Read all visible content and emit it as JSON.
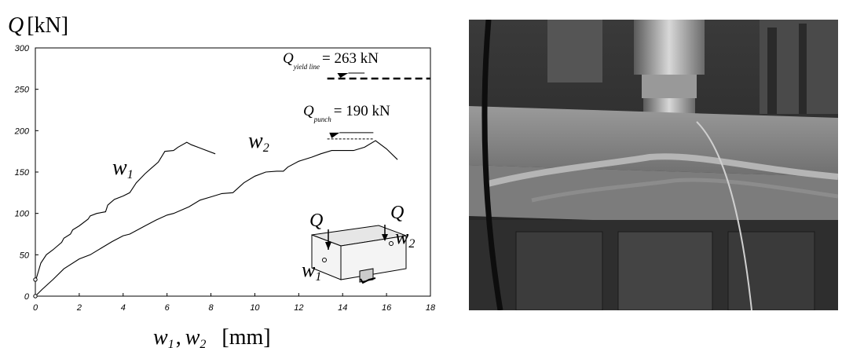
{
  "chart_data": {
    "type": "line",
    "title": "",
    "ylabel": {
      "symbol": "Q",
      "unit": "[kN]"
    },
    "xlabel": {
      "w1": "w",
      "w1_sub": "1",
      "sep": ",",
      "w2": "w",
      "w2_sub": "2",
      "unit": "[mm]"
    },
    "xlim": [
      0,
      18
    ],
    "ylim": [
      0,
      300
    ],
    "xticks": [
      "0",
      "2",
      "4",
      "6",
      "8",
      "10",
      "12",
      "14",
      "16",
      "18"
    ],
    "yticks": [
      "0",
      "50",
      "100",
      "150",
      "200",
      "250",
      "300"
    ],
    "grid": false,
    "series": [
      {
        "name": "w1",
        "label": {
          "w": "w",
          "sub": "1"
        },
        "x": [
          0,
          0.05,
          0.25,
          0.5,
          0.8,
          1.2,
          1.3,
          1.6,
          1.7,
          2.0,
          2.4,
          2.5,
          2.8,
          3.2,
          3.3,
          3.6,
          4.0,
          4.3,
          4.6,
          5.0,
          5.3,
          5.6,
          5.9,
          6.3,
          6.5,
          6.9,
          7.1,
          7.6,
          8.2
        ],
        "y": [
          20,
          22,
          40,
          50,
          56,
          65,
          70,
          75,
          80,
          85,
          93,
          97,
          100,
          102,
          110,
          117,
          121,
          125,
          137,
          148,
          155,
          162,
          175,
          176,
          180,
          186,
          183,
          178,
          172
        ]
      },
      {
        "name": "w2",
        "label": {
          "w": "w",
          "sub": "2"
        },
        "x": [
          0,
          0.3,
          0.8,
          1.3,
          2.0,
          2.5,
          3.0,
          3.5,
          4.0,
          4.3,
          5.0,
          5.5,
          6.0,
          6.3,
          7.0,
          7.5,
          8.0,
          8.5,
          9.0,
          9.5,
          10.0,
          10.5,
          11.0,
          11.3,
          11.5,
          12.0,
          12.6,
          13.0,
          13.5,
          14.0,
          14.5,
          15.0,
          15.5,
          16.0,
          16.5
        ],
        "y": [
          0,
          8,
          20,
          33,
          45,
          50,
          58,
          66,
          73,
          75,
          85,
          92,
          98,
          100,
          108,
          116,
          120,
          124,
          125,
          137,
          145,
          150,
          151,
          151,
          156,
          163,
          168,
          172,
          176,
          176,
          176,
          180,
          188,
          178,
          165
        ]
      }
    ],
    "annotations": [
      {
        "symbol": "Q",
        "sub": "yield line",
        "text": "= 263 kN",
        "y": 263,
        "x_range": [
          13.3,
          18
        ]
      },
      {
        "symbol": "Q",
        "sub": "punch",
        "text": "= 190 kN",
        "y": 190,
        "x_range": [
          13.3,
          15.4
        ]
      }
    ],
    "inset": {
      "q_left": "Q",
      "q_right": "Q",
      "w1": "w",
      "w1_sub": "1",
      "w2": "w",
      "w2_sub": "2"
    }
  }
}
